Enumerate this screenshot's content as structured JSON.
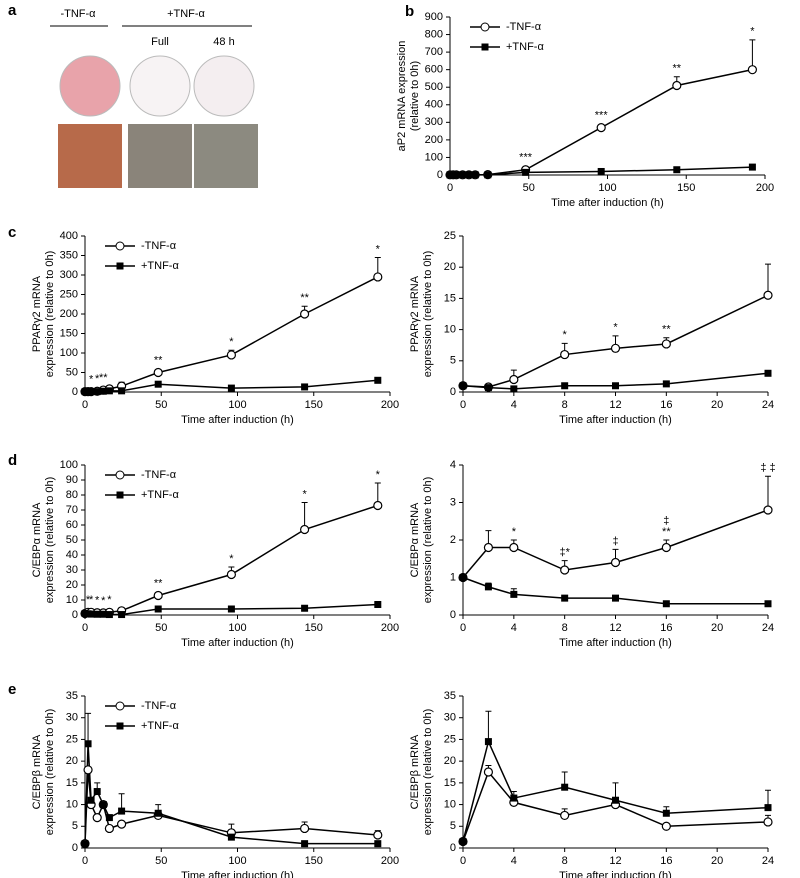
{
  "panel_a": {
    "label": "a",
    "headers": [
      "-TNF-α",
      "+TNF-α"
    ],
    "columns": [
      "Full",
      "48 h"
    ]
  },
  "chart_data": [
    {
      "type": "line",
      "panel": "b",
      "xlabel": "Time after induction (h)",
      "ylabel": [
        "aP2 mRNA expression",
        "(relative to 0h)"
      ],
      "x": [
        0,
        2,
        4,
        8,
        12,
        16,
        24,
        48,
        96,
        144,
        192
      ],
      "xlim": [
        0,
        200
      ],
      "xticks": [
        0,
        50,
        100,
        150,
        200
      ],
      "ylim": [
        0,
        900
      ],
      "yticks": [
        0,
        100,
        200,
        300,
        400,
        500,
        600,
        700,
        800,
        900
      ],
      "legend": "upper left",
      "series": [
        {
          "name": "-TNF-α",
          "color": "#000000",
          "marker": "circle",
          "values": [
            1,
            1,
            1,
            1,
            1,
            1,
            2,
            30,
            270,
            510,
            600
          ],
          "errors": [
            null,
            null,
            null,
            null,
            null,
            null,
            null,
            null,
            null,
            50,
            170
          ]
        },
        {
          "name": "+TNF-α",
          "color": "#000000",
          "marker": "square",
          "values": [
            1,
            1,
            1,
            1,
            1,
            1,
            1,
            15,
            20,
            30,
            45
          ],
          "errors": [
            null,
            null,
            null,
            null,
            null,
            null,
            null,
            null,
            null,
            null,
            null
          ]
        }
      ],
      "significance": [
        null,
        null,
        null,
        null,
        null,
        null,
        null,
        "***",
        "***",
        "**",
        "*"
      ]
    },
    {
      "type": "line",
      "panel": "c",
      "xlabel": "Time after induction (h)",
      "ylabel": [
        "PPARγ2 mRNA",
        "expression (relative to 0h)"
      ],
      "x": [
        0,
        2,
        4,
        8,
        12,
        16,
        24,
        48,
        96,
        144,
        192
      ],
      "xlim": [
        0,
        200
      ],
      "xticks": [
        0,
        50,
        100,
        150,
        200
      ],
      "ylim": [
        0,
        400
      ],
      "yticks": [
        0,
        50,
        100,
        150,
        200,
        250,
        300,
        350,
        400
      ],
      "legend": "upper left",
      "series": [
        {
          "name": "-TNF-α",
          "color": "#000000",
          "marker": "circle",
          "values": [
            1,
            1,
            1,
            2,
            5,
            8,
            15,
            50,
            95,
            200,
            295
          ],
          "errors": [
            null,
            null,
            null,
            null,
            null,
            null,
            10,
            6,
            12,
            20,
            50
          ]
        },
        {
          "name": "+TNF-α",
          "color": "#000000",
          "marker": "square",
          "values": [
            1,
            1,
            1,
            1,
            2,
            3,
            3,
            20,
            10,
            13,
            30
          ],
          "errors": [
            null,
            null,
            null,
            null,
            null,
            null,
            null,
            null,
            null,
            null,
            null
          ]
        }
      ],
      "significance": [
        null,
        null,
        "*",
        "*",
        "**",
        null,
        null,
        "**",
        "*",
        "**",
        "*"
      ]
    },
    {
      "type": "line",
      "xlabel": "Time after induction (h)",
      "ylabel": [
        "PPARγ2 mRNA",
        "expression (relative to 0h)"
      ],
      "x": [
        0,
        2,
        4,
        8,
        12,
        16,
        24
      ],
      "xlim": [
        0,
        24
      ],
      "xticks": [
        0,
        4,
        8,
        12,
        16,
        20,
        24
      ],
      "ylim": [
        0,
        25
      ],
      "yticks": [
        0,
        5,
        10,
        15,
        20,
        25
      ],
      "series": [
        {
          "color": "#000000",
          "marker": "circle",
          "values": [
            1,
            0.8,
            2,
            6,
            7,
            7.7,
            15.5
          ],
          "errors": [
            null,
            null,
            1.5,
            1.8,
            2,
            1,
            5
          ]
        },
        {
          "color": "#000000",
          "marker": "square",
          "values": [
            1,
            0.7,
            0.5,
            1,
            1,
            1.3,
            3
          ],
          "errors": [
            null,
            null,
            null,
            null,
            null,
            null,
            null
          ]
        }
      ],
      "significance": [
        null,
        null,
        null,
        "*",
        "*",
        "**",
        null
      ]
    },
    {
      "type": "line",
      "panel": "d",
      "xlabel": "Time after induction (h)",
      "ylabel": [
        "C/EBPα mRNA",
        "expression (relative to 0h)"
      ],
      "x": [
        0,
        2,
        4,
        8,
        12,
        16,
        24,
        48,
        96,
        144,
        192
      ],
      "xlim": [
        0,
        200
      ],
      "xticks": [
        0,
        50,
        100,
        150,
        200
      ],
      "ylim": [
        0,
        100
      ],
      "yticks": [
        0,
        10,
        20,
        30,
        40,
        50,
        60,
        70,
        80,
        90,
        100
      ],
      "legend": "upper left",
      "series": [
        {
          "name": "-TNF-α",
          "color": "#000000",
          "marker": "circle",
          "values": [
            1,
            1.8,
            1.8,
            1.5,
            1.4,
            1.8,
            2.8,
            13,
            27,
            57,
            73
          ],
          "errors": [
            null,
            null,
            null,
            null,
            null,
            null,
            null,
            2,
            5,
            18,
            15
          ]
        },
        {
          "name": "+TNF-α",
          "color": "#000000",
          "marker": "square",
          "values": [
            1,
            0.8,
            0.6,
            0.5,
            0.5,
            0.3,
            0.3,
            4,
            4,
            4.5,
            7
          ],
          "errors": [
            null,
            null,
            null,
            null,
            null,
            null,
            null,
            null,
            null,
            null,
            null
          ]
        }
      ],
      "significance": [
        null,
        "*",
        "*",
        "*",
        "*",
        "*",
        null,
        "**",
        "*",
        "*",
        "*"
      ]
    },
    {
      "type": "line",
      "xlabel": "Time after induction (h)",
      "ylabel": [
        "C/EBPα mRNA",
        "expression (relative to 0h)"
      ],
      "x": [
        0,
        2,
        4,
        8,
        12,
        16,
        24
      ],
      "xlim": [
        0,
        24
      ],
      "xticks": [
        0,
        4,
        8,
        12,
        16,
        20,
        24
      ],
      "ylim": [
        0,
        4
      ],
      "yticks": [
        0,
        1,
        2,
        3,
        4
      ],
      "series": [
        {
          "color": "#000000",
          "marker": "circle",
          "values": [
            1,
            1.8,
            1.8,
            1.2,
            1.4,
            1.8,
            2.8
          ],
          "errors": [
            null,
            0.45,
            0.2,
            0.25,
            0.35,
            0.2,
            0.9
          ]
        },
        {
          "color": "#000000",
          "marker": "square",
          "values": [
            1,
            0.75,
            0.55,
            0.45,
            0.45,
            0.3,
            0.3
          ],
          "errors": [
            null,
            0.1,
            0.15,
            null,
            null,
            null,
            null
          ]
        }
      ],
      "significance": [
        null,
        null,
        "*",
        "‡*",
        "‡",
        [
          "‡",
          "**"
        ],
        "‡ ‡"
      ]
    },
    {
      "type": "line",
      "panel": "e",
      "xlabel": "Time after induction (h)",
      "ylabel": [
        "C/EBPβ mRNA",
        "expression (relative to 0h)"
      ],
      "x": [
        0,
        2,
        4,
        8,
        12,
        16,
        24,
        48,
        96,
        144,
        192
      ],
      "xlim": [
        0,
        200
      ],
      "xticks": [
        0,
        50,
        100,
        150,
        200
      ],
      "ylim": [
        0,
        35
      ],
      "yticks": [
        0,
        5,
        10,
        15,
        20,
        25,
        30,
        35
      ],
      "legend": "upper left",
      "series": [
        {
          "name": "-TNF-α",
          "color": "#000000",
          "marker": "circle",
          "values": [
            1,
            18,
            10,
            7,
            10,
            4.5,
            5.5,
            7.5,
            3.5,
            4.5,
            3
          ],
          "errors": [
            null,
            null,
            null,
            null,
            null,
            null,
            null,
            null,
            2,
            1.5,
            1
          ]
        },
        {
          "name": "+TNF-α",
          "color": "#000000",
          "marker": "square",
          "values": [
            1,
            24,
            11,
            13,
            10,
            7,
            8.5,
            8,
            2.5,
            1,
            1
          ],
          "errors": [
            null,
            7,
            null,
            2,
            null,
            null,
            4,
            2,
            null,
            null,
            null
          ]
        }
      ]
    },
    {
      "type": "line",
      "xlabel": "Time after induction (h)",
      "ylabel": [
        "C/EBPβ mRNA",
        "expression (relative to 0h)"
      ],
      "x": [
        0,
        2,
        4,
        8,
        12,
        16,
        24
      ],
      "xlim": [
        0,
        24
      ],
      "xticks": [
        0,
        4,
        8,
        12,
        16,
        20,
        24
      ],
      "ylim": [
        0,
        35
      ],
      "yticks": [
        0,
        5,
        10,
        15,
        20,
        25,
        30,
        35
      ],
      "series": [
        {
          "color": "#000000",
          "marker": "circle",
          "values": [
            1.5,
            17.5,
            10.5,
            7.5,
            10,
            5,
            6
          ],
          "errors": [
            null,
            1.5,
            null,
            1.5,
            null,
            null,
            1.5
          ]
        },
        {
          "color": "#000000",
          "marker": "square",
          "values": [
            1.5,
            24.5,
            11.5,
            14,
            11,
            8,
            9.3
          ],
          "errors": [
            null,
            7,
            1.5,
            3.5,
            4,
            1.5,
            4
          ]
        }
      ]
    }
  ]
}
